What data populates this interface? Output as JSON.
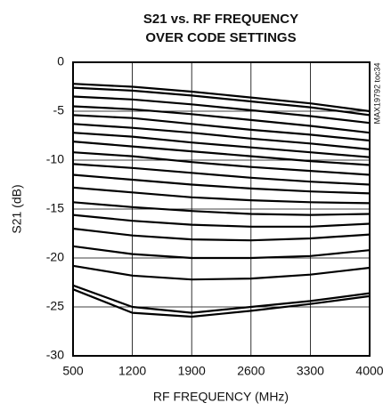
{
  "chart_data": {
    "type": "line",
    "title": "S21 vs. RF FREQUENCY",
    "subtitle": "OVER CODE SETTINGS",
    "annotation": "MAX19792 toc34",
    "x_label": "RF FREQUENCY (MHz)",
    "y_label": "S21 (dB)",
    "x": [
      500,
      1200,
      1900,
      2600,
      3300,
      4000
    ],
    "xlim": [
      500,
      4000
    ],
    "xticks": [
      500,
      1200,
      1900,
      2600,
      3300,
      4000
    ],
    "ylim": [
      -30,
      0
    ],
    "yticks": [
      0,
      -5,
      -10,
      -15,
      -20,
      -25,
      -30
    ],
    "grid": true,
    "color": "#000000",
    "series": [
      {
        "values": [
          -2.2,
          -2.5,
          -3.0,
          -3.6,
          -4.2,
          -5.0
        ]
      },
      {
        "values": [
          -2.6,
          -2.9,
          -3.4,
          -4.0,
          -4.6,
          -5.4
        ]
      },
      {
        "values": [
          -3.5,
          -3.8,
          -4.3,
          -4.9,
          -5.5,
          -6.2
        ]
      },
      {
        "values": [
          -4.5,
          -4.8,
          -5.3,
          -5.9,
          -6.5,
          -7.2
        ]
      },
      {
        "values": [
          -5.4,
          -5.7,
          -6.3,
          -6.9,
          -7.4,
          -8.0
        ]
      },
      {
        "values": [
          -6.3,
          -6.7,
          -7.2,
          -7.8,
          -8.3,
          -8.9
        ]
      },
      {
        "values": [
          -7.2,
          -7.6,
          -8.2,
          -8.7,
          -9.2,
          -9.7
        ]
      },
      {
        "values": [
          -8.1,
          -8.6,
          -9.1,
          -9.6,
          -10.1,
          -10.5
        ]
      },
      {
        "values": [
          -9.2,
          -9.6,
          -10.2,
          -10.7,
          -11.1,
          -11.5
        ]
      },
      {
        "values": [
          -10.4,
          -10.8,
          -11.3,
          -11.8,
          -12.2,
          -12.5
        ]
      },
      {
        "values": [
          -11.5,
          -12.0,
          -12.5,
          -12.9,
          -13.2,
          -13.4
        ]
      },
      {
        "values": [
          -12.8,
          -13.3,
          -13.8,
          -14.1,
          -14.3,
          -14.4
        ]
      },
      {
        "values": [
          -14.3,
          -14.8,
          -15.2,
          -15.5,
          -15.6,
          -15.5
        ]
      },
      {
        "values": [
          -15.6,
          -16.2,
          -16.6,
          -16.8,
          -16.8,
          -16.5
        ]
      },
      {
        "values": [
          -17.0,
          -17.7,
          -18.1,
          -18.2,
          -18.0,
          -17.6
        ]
      },
      {
        "values": [
          -18.8,
          -19.6,
          -20.0,
          -20.0,
          -19.8,
          -19.2
        ]
      },
      {
        "values": [
          -20.8,
          -21.8,
          -22.2,
          -22.1,
          -21.7,
          -21.0
        ]
      },
      {
        "values": [
          -22.8,
          -25.0,
          -25.6,
          -25.0,
          -24.4,
          -23.6
        ]
      },
      {
        "values": [
          -23.2,
          -25.6,
          -26.0,
          -25.4,
          -24.7,
          -23.9
        ]
      }
    ]
  }
}
